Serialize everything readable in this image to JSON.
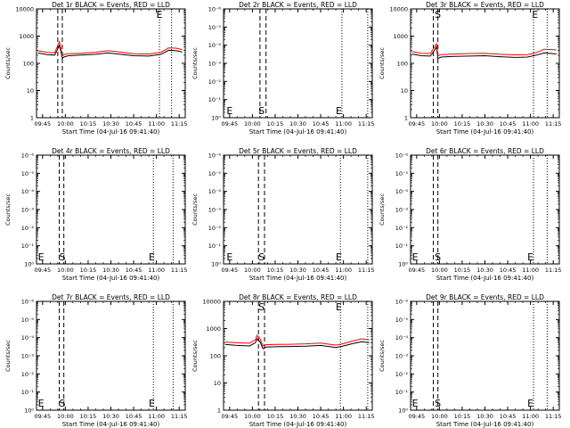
{
  "xlabel": "Start Time (04-Jul-16 09:41:40)",
  "ylabel": "Counts/sec",
  "x_ticks": [
    "09:45",
    "10:00",
    "10:15",
    "10:30",
    "10:45",
    "11:00",
    "11:15"
  ],
  "colors": {
    "events": "#000000",
    "lld": "#ff0000",
    "axes": "#000000"
  },
  "panels": [
    {
      "title": "Det 1r BLACK = Events, RED = LLD",
      "y_ticks": [
        "1",
        "10",
        "100",
        "1000",
        "10000"
      ],
      "has_data": true,
      "dashed_x": [
        "09:55",
        "09:58"
      ],
      "dotted_x": [
        "11:02",
        "11:10"
      ],
      "markers": [
        {
          "text": "E",
          "time": "11:02",
          "pos": "top"
        }
      ],
      "series": [
        {
          "name": "Events",
          "color": "#000000",
          "points": [
            [
              "09:42",
              240
            ],
            [
              "09:48",
              210
            ],
            [
              "09:53",
              200
            ],
            [
              "09:55",
              340
            ],
            [
              "09:56",
              450
            ],
            [
              "09:57",
              280
            ],
            [
              "09:58",
              150
            ],
            [
              "09:59",
              170
            ],
            [
              "10:02",
              190
            ],
            [
              "10:10",
              200
            ],
            [
              "10:20",
              215
            ],
            [
              "10:28",
              240
            ],
            [
              "10:35",
              220
            ],
            [
              "10:45",
              190
            ],
            [
              "10:55",
              185
            ],
            [
              "11:03",
              215
            ],
            [
              "11:08",
              300
            ],
            [
              "11:13",
              290
            ],
            [
              "11:17",
              260
            ]
          ]
        },
        {
          "name": "LLD",
          "color": "#ff0000",
          "points": [
            [
              "09:42",
              290
            ],
            [
              "09:48",
              255
            ],
            [
              "09:53",
              245
            ],
            [
              "09:55",
              450
            ],
            [
              "09:56",
              620
            ],
            [
              "09:57",
              360
            ],
            [
              "09:58",
              190
            ],
            [
              "09:59",
              210
            ],
            [
              "10:02",
              225
            ],
            [
              "10:10",
              235
            ],
            [
              "10:20",
              255
            ],
            [
              "10:28",
              290
            ],
            [
              "10:35",
              265
            ],
            [
              "10:45",
              225
            ],
            [
              "10:55",
              220
            ],
            [
              "11:03",
              255
            ],
            [
              "11:08",
              370
            ],
            [
              "11:13",
              360
            ],
            [
              "11:17",
              320
            ]
          ]
        }
      ]
    },
    {
      "title": "Det 2r BLACK = Events, RED = LLD",
      "y_ticks": [
        "10⁰",
        "10⁻¹",
        "10⁻²",
        "10⁻³",
        "10⁻⁴",
        "10⁻⁵",
        "10⁻⁶"
      ],
      "has_data": false,
      "dashed_x": [
        "10:05",
        "10:09"
      ],
      "dotted_x": [
        "10:59",
        "11:16"
      ],
      "markers": [
        {
          "text": "E",
          "time": "09:45",
          "pos": "bottom"
        },
        {
          "text": "S",
          "time": "10:06",
          "pos": "bottom"
        },
        {
          "text": "E",
          "time": "10:57",
          "pos": "bottom"
        }
      ],
      "series": []
    },
    {
      "title": "Det 3r BLACK = Events, RED = LLD",
      "y_ticks": [
        "1",
        "10",
        "100",
        "1000",
        "10000"
      ],
      "has_data": true,
      "dashed_x": [
        "09:56",
        "09:59"
      ],
      "dotted_x": [
        "11:02",
        "11:11"
      ],
      "markers": [
        {
          "text": "S",
          "time": "09:59",
          "pos": "top"
        },
        {
          "text": "E",
          "time": "11:03",
          "pos": "top"
        }
      ],
      "series": [
        {
          "name": "Events",
          "color": "#000000",
          "points": [
            [
              "09:42",
              220
            ],
            [
              "09:48",
              190
            ],
            [
              "09:54",
              185
            ],
            [
              "09:57",
              320
            ],
            [
              "09:58",
              400
            ],
            [
              "09:59",
              150
            ],
            [
              "10:01",
              170
            ],
            [
              "10:10",
              180
            ],
            [
              "10:20",
              185
            ],
            [
              "10:30",
              190
            ],
            [
              "10:40",
              175
            ],
            [
              "10:50",
              165
            ],
            [
              "10:58",
              170
            ],
            [
              "11:04",
              200
            ],
            [
              "11:09",
              240
            ],
            [
              "11:14",
              230
            ],
            [
              "11:17",
              220
            ]
          ]
        },
        {
          "name": "LLD",
          "color": "#ff0000",
          "points": [
            [
              "09:42",
              270
            ],
            [
              "09:48",
              235
            ],
            [
              "09:54",
              230
            ],
            [
              "09:57",
              420
            ],
            [
              "09:58",
              520
            ],
            [
              "09:59",
              190
            ],
            [
              "10:01",
              210
            ],
            [
              "10:10",
              220
            ],
            [
              "10:20",
              230
            ],
            [
              "10:30",
              235
            ],
            [
              "10:40",
              215
            ],
            [
              "10:50",
              205
            ],
            [
              "10:58",
              210
            ],
            [
              "11:04",
              250
            ],
            [
              "11:09",
              330
            ],
            [
              "11:14",
              320
            ],
            [
              "11:17",
              310
            ]
          ]
        }
      ]
    },
    {
      "title": "Det 4r BLACK = Events, RED = LLD",
      "y_ticks": [
        "10⁰",
        "10⁻¹",
        "10⁻²",
        "10⁻³",
        "10⁻⁴",
        "10⁻⁵",
        "10⁻⁶"
      ],
      "has_data": false,
      "dashed_x": [
        "09:56",
        "09:59"
      ],
      "dotted_x": [
        "10:58",
        "11:11"
      ],
      "markers": [
        {
          "text": "E",
          "time": "09:44",
          "pos": "bottom"
        },
        {
          "text": "S",
          "time": "09:58",
          "pos": "bottom"
        },
        {
          "text": "E",
          "time": "10:57",
          "pos": "bottom"
        }
      ],
      "series": []
    },
    {
      "title": "Det 5r BLACK = Events, RED = LLD",
      "y_ticks": [
        "10⁰",
        "10⁻¹",
        "10⁻²",
        "10⁻³",
        "10⁻⁴",
        "10⁻⁵",
        "10⁻⁶"
      ],
      "has_data": false,
      "dashed_x": [
        "10:04",
        "10:08"
      ],
      "dotted_x": [
        "10:58",
        "11:16"
      ],
      "markers": [
        {
          "text": "E",
          "time": "09:45",
          "pos": "bottom"
        },
        {
          "text": "S",
          "time": "10:06",
          "pos": "bottom"
        },
        {
          "text": "E",
          "time": "10:57",
          "pos": "bottom"
        }
      ],
      "series": []
    },
    {
      "title": "Det 6r BLACK = Events, RED = LLD",
      "y_ticks": [
        "10⁰",
        "10⁻¹",
        "10⁻²",
        "10⁻³",
        "10⁻⁴",
        "10⁻⁵",
        "10⁻⁶"
      ],
      "has_data": false,
      "dashed_x": [
        "09:56",
        "09:59"
      ],
      "dotted_x": [
        "11:02",
        "11:11"
      ],
      "markers": [
        {
          "text": "E",
          "time": "09:44",
          "pos": "bottom"
        },
        {
          "text": "S",
          "time": "09:59",
          "pos": "bottom"
        },
        {
          "text": "E",
          "time": "11:00",
          "pos": "bottom"
        }
      ],
      "series": []
    },
    {
      "title": "Det 7r BLACK = Events, RED = LLD",
      "y_ticks": [
        "10⁰",
        "10⁻¹",
        "10⁻²",
        "10⁻³",
        "10⁻⁴",
        "10⁻⁵",
        "10⁻⁶"
      ],
      "has_data": false,
      "dashed_x": [
        "09:56",
        "09:59"
      ],
      "dotted_x": [
        "10:58",
        "11:11"
      ],
      "markers": [
        {
          "text": "E",
          "time": "09:44",
          "pos": "bottom"
        },
        {
          "text": "S",
          "time": "09:58",
          "pos": "bottom"
        },
        {
          "text": "E",
          "time": "10:57",
          "pos": "bottom"
        }
      ],
      "series": []
    },
    {
      "title": "Det 8r BLACK = Events, RED = LLD",
      "y_ticks": [
        "1",
        "10",
        "100",
        "1000",
        "10000"
      ],
      "has_data": true,
      "dashed_x": [
        "10:04",
        "10:08"
      ],
      "dotted_x": [
        "10:58",
        "11:16"
      ],
      "markers": [
        {
          "text": "S",
          "time": "10:06",
          "pos": "top"
        },
        {
          "text": "E",
          "time": "10:57",
          "pos": "top"
        }
      ],
      "series": [
        {
          "name": "Events",
          "color": "#000000",
          "points": [
            [
              "09:42",
              260
            ],
            [
              "09:50",
              240
            ],
            [
              "09:58",
              230
            ],
            [
              "10:02",
              300
            ],
            [
              "10:03",
              420
            ],
            [
              "10:05",
              330
            ],
            [
              "10:07",
              180
            ],
            [
              "10:09",
              210
            ],
            [
              "10:15",
              215
            ],
            [
              "10:25",
              220
            ],
            [
              "10:35",
              225
            ],
            [
              "10:45",
              240
            ],
            [
              "10:55",
              200
            ],
            [
              "11:00",
              230
            ],
            [
              "11:06",
              280
            ],
            [
              "11:12",
              330
            ],
            [
              "11:17",
              300
            ]
          ]
        },
        {
          "name": "LLD",
          "color": "#ff0000",
          "points": [
            [
              "09:42",
              320
            ],
            [
              "09:50",
              300
            ],
            [
              "09:58",
              290
            ],
            [
              "10:02",
              390
            ],
            [
              "10:03",
              560
            ],
            [
              "10:05",
              430
            ],
            [
              "10:07",
              230
            ],
            [
              "10:09",
              255
            ],
            [
              "10:15",
              260
            ],
            [
              "10:25",
              265
            ],
            [
              "10:35",
              275
            ],
            [
              "10:45",
              295
            ],
            [
              "10:55",
              245
            ],
            [
              "11:00",
              280
            ],
            [
              "11:06",
              350
            ],
            [
              "11:12",
              420
            ],
            [
              "11:17",
              380
            ]
          ]
        }
      ]
    },
    {
      "title": "Det 9r BLACK = Events, RED = LLD",
      "y_ticks": [
        "10⁰",
        "10⁻¹",
        "10⁻²",
        "10⁻³",
        "10⁻⁴",
        "10⁻⁵",
        "10⁻⁶"
      ],
      "has_data": false,
      "dashed_x": [
        "09:56",
        "09:59"
      ],
      "dotted_x": [
        "11:02",
        "11:11"
      ],
      "markers": [
        {
          "text": "E",
          "time": "09:44",
          "pos": "bottom"
        },
        {
          "text": "S",
          "time": "09:59",
          "pos": "bottom"
        },
        {
          "text": "E",
          "time": "11:00",
          "pos": "bottom"
        }
      ],
      "series": []
    }
  ],
  "chart_data": [
    {
      "type": "line",
      "title": "Det 1r BLACK = Events, RED = LLD",
      "xlabel": "Start Time (04-Jul-16 09:41:40)",
      "ylabel": "Counts/sec",
      "yscale": "log",
      "ylim": [
        1,
        10000
      ]
    },
    {
      "type": "line",
      "title": "Det 2r BLACK = Events, RED = LLD",
      "xlabel": "Start Time (04-Jul-16 09:41:40)",
      "ylabel": "Counts/sec",
      "yscale": "log"
    },
    {
      "type": "line",
      "title": "Det 3r BLACK = Events, RED = LLD",
      "xlabel": "Start Time (04-Jul-16 09:41:40)",
      "ylabel": "Counts/sec",
      "yscale": "log",
      "ylim": [
        1,
        10000
      ]
    },
    {
      "type": "line",
      "title": "Det 4r BLACK = Events, RED = LLD",
      "xlabel": "Start Time (04-Jul-16 09:41:40)",
      "ylabel": "Counts/sec",
      "yscale": "log"
    },
    {
      "type": "line",
      "title": "Det 5r BLACK = Events, RED = LLD",
      "xlabel": "Start Time (04-Jul-16 09:41:40)",
      "ylabel": "Counts/sec",
      "yscale": "log"
    },
    {
      "type": "line",
      "title": "Det 6r BLACK = Events, RED = LLD",
      "xlabel": "Start Time (04-Jul-16 09:41:40)",
      "ylabel": "Counts/sec",
      "yscale": "log"
    },
    {
      "type": "line",
      "title": "Det 7r BLACK = Events, RED = LLD",
      "xlabel": "Start Time (04-Jul-16 09:41:40)",
      "ylabel": "Counts/sec",
      "yscale": "log"
    },
    {
      "type": "line",
      "title": "Det 8r BLACK = Events, RED = LLD",
      "xlabel": "Start Time (04-Jul-16 09:41:40)",
      "ylabel": "Counts/sec",
      "yscale": "log",
      "ylim": [
        1,
        10000
      ]
    },
    {
      "type": "line",
      "title": "Det 9r BLACK = Events, RED = LLD",
      "xlabel": "Start Time (04-Jul-16 09:41:40)",
      "ylabel": "Counts/sec",
      "yscale": "log"
    }
  ]
}
